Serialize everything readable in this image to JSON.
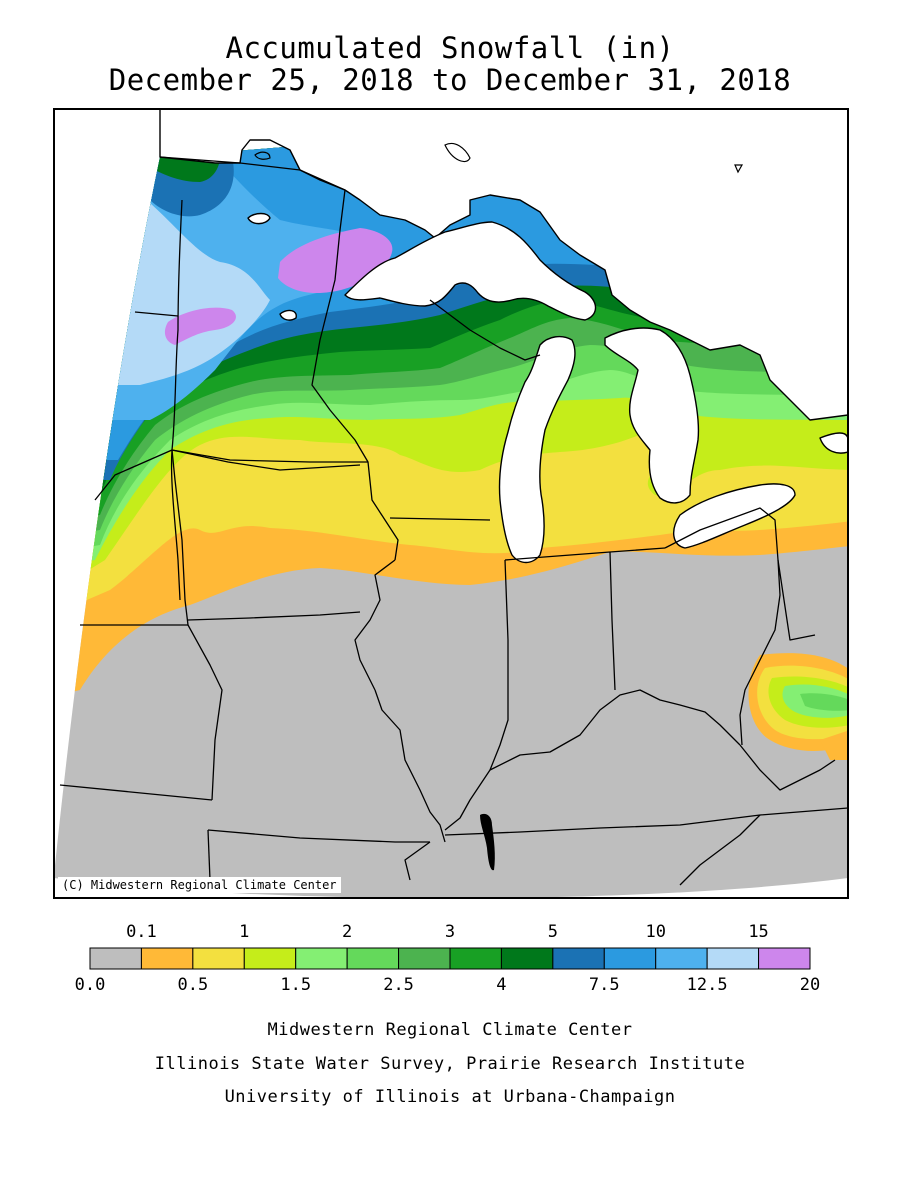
{
  "title": {
    "line1": "Accumulated Snowfall (in)",
    "line2": "December 25, 2018 to December 31, 2018"
  },
  "map": {
    "copyright": "(C) Midwestern Regional Climate Center",
    "region": "Upper Midwest / Great Lakes"
  },
  "legend": {
    "colors": [
      "#bebebe",
      "#ffb937",
      "#f3e03f",
      "#c5ed1a",
      "#84ef73",
      "#64d95b",
      "#4cb34f",
      "#18a024",
      "#00781b",
      "#1b72b4",
      "#2b9ae0",
      "#4eb1ee",
      "#b4daf7",
      "#cd86ec"
    ],
    "upper_labels": [
      "0.1",
      "1",
      "2",
      "3",
      "5",
      "10",
      "15"
    ],
    "lower_labels": [
      "0.0",
      "0.5",
      "1.5",
      "2.5",
      "4",
      "7.5",
      "12.5",
      "20"
    ]
  },
  "credits": [
    "Midwestern Regional Climate Center",
    "Illinois State Water Survey, Prairie Research Institute",
    "University of Illinois at Urbana-Champaign"
  ]
}
